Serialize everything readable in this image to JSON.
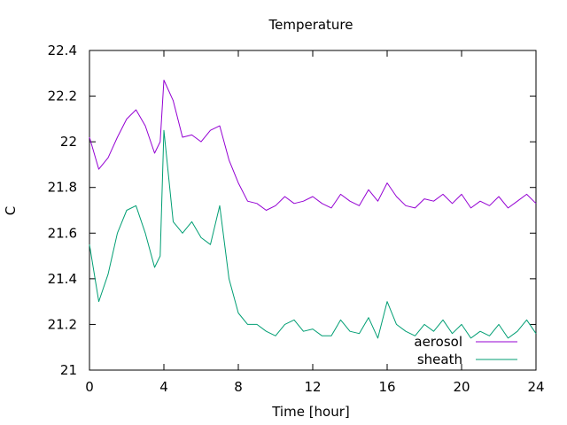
{
  "chart_data": {
    "type": "line",
    "title": "Temperature",
    "xlabel": "Time [hour]",
    "ylabel": "C",
    "xlim": [
      0,
      24
    ],
    "ylim": [
      21,
      22.4
    ],
    "xticks": [
      0,
      4,
      8,
      12,
      16,
      20,
      24
    ],
    "yticks": [
      21,
      21.2,
      21.4,
      21.6,
      21.8,
      22,
      22.2,
      22.4
    ],
    "xtick_labels": [
      "0",
      "4",
      "8",
      "12",
      "16",
      "20",
      "24"
    ],
    "ytick_labels": [
      "21",
      "21.2",
      "21.4",
      "21.6",
      "21.8",
      "22",
      "22.2",
      "22.4"
    ],
    "grid": false,
    "legend_position": "bottom-right",
    "x": [
      0,
      0.5,
      1,
      1.5,
      2,
      2.5,
      3,
      3.5,
      3.8,
      4,
      4.5,
      5,
      5.5,
      6,
      6.5,
      7,
      7.5,
      8,
      8.5,
      9,
      9.5,
      10,
      10.5,
      11,
      11.5,
      12,
      12.5,
      13,
      13.5,
      14,
      14.5,
      15,
      15.5,
      16,
      16.5,
      17,
      17.5,
      18,
      18.5,
      19,
      19.5,
      20,
      20.5,
      21,
      21.5,
      22,
      22.5,
      23,
      23.5,
      24
    ],
    "series": [
      {
        "name": "aerosol",
        "color": "#9400d3",
        "values": [
          22.02,
          21.88,
          21.93,
          22.02,
          22.1,
          22.14,
          22.07,
          21.95,
          22.0,
          22.27,
          22.18,
          22.02,
          22.03,
          22.0,
          22.05,
          22.07,
          21.92,
          21.82,
          21.74,
          21.73,
          21.7,
          21.72,
          21.76,
          21.73,
          21.74,
          21.76,
          21.73,
          21.71,
          21.77,
          21.74,
          21.72,
          21.79,
          21.74,
          21.82,
          21.76,
          21.72,
          21.71,
          21.75,
          21.74,
          21.77,
          21.73,
          21.77,
          21.71,
          21.74,
          21.72,
          21.76,
          21.71,
          21.74,
          21.77,
          21.73
        ]
      },
      {
        "name": "sheath",
        "color": "#009e73",
        "values": [
          21.55,
          21.3,
          21.42,
          21.6,
          21.7,
          21.72,
          21.6,
          21.45,
          21.5,
          22.05,
          21.65,
          21.6,
          21.65,
          21.58,
          21.55,
          21.72,
          21.4,
          21.25,
          21.2,
          21.2,
          21.17,
          21.15,
          21.2,
          21.22,
          21.17,
          21.18,
          21.15,
          21.15,
          21.22,
          21.17,
          21.16,
          21.23,
          21.14,
          21.3,
          21.2,
          21.17,
          21.15,
          21.2,
          21.17,
          21.22,
          21.16,
          21.2,
          21.14,
          21.17,
          21.15,
          21.2,
          21.14,
          21.17,
          21.22,
          21.16
        ]
      }
    ]
  }
}
